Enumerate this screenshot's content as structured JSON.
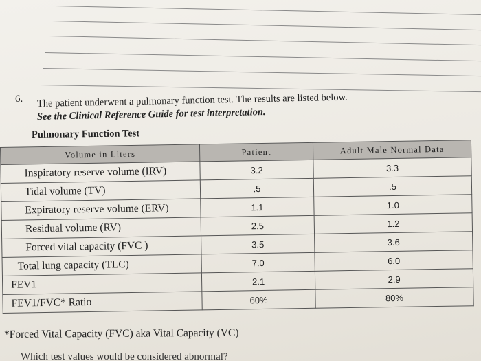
{
  "question": {
    "number": "6.",
    "line1": "The patient underwent a pulmonary function test. The results are listed below.",
    "line2": "See the Clinical Reference Guide for test interpretation."
  },
  "table": {
    "title": "Pulmonary Function Test",
    "headers": [
      "Volume in Liters",
      "Patient",
      "Adult Male Normal Data"
    ],
    "rows": [
      {
        "label": "Inspiratory reserve volume (IRV)",
        "patient": "3.2",
        "normal": "3.3"
      },
      {
        "label": "Tidal volume (TV)",
        "patient": ".5",
        "normal": ".5"
      },
      {
        "label": "Expiratory reserve volume (ERV)",
        "patient": "1.1",
        "normal": "1.0"
      },
      {
        "label": "Residual volume (RV)",
        "patient": "2.5",
        "normal": "1.2"
      },
      {
        "label": "Forced vital capacity (FVC )",
        "patient": "3.5",
        "normal": "3.6"
      },
      {
        "label": "Total lung capacity (TLC)",
        "patient": "7.0",
        "normal": "6.0"
      },
      {
        "label": "FEV1",
        "patient": "2.1",
        "normal": "2.9"
      },
      {
        "label": "FEV1/FVC* Ratio",
        "patient": "60%",
        "normal": "80%"
      }
    ]
  },
  "footnote": "*Forced Vital Capacity (FVC) aka Vital Capacity (VC)",
  "next_question_partial": "Which test values would be considered abnormal?"
}
